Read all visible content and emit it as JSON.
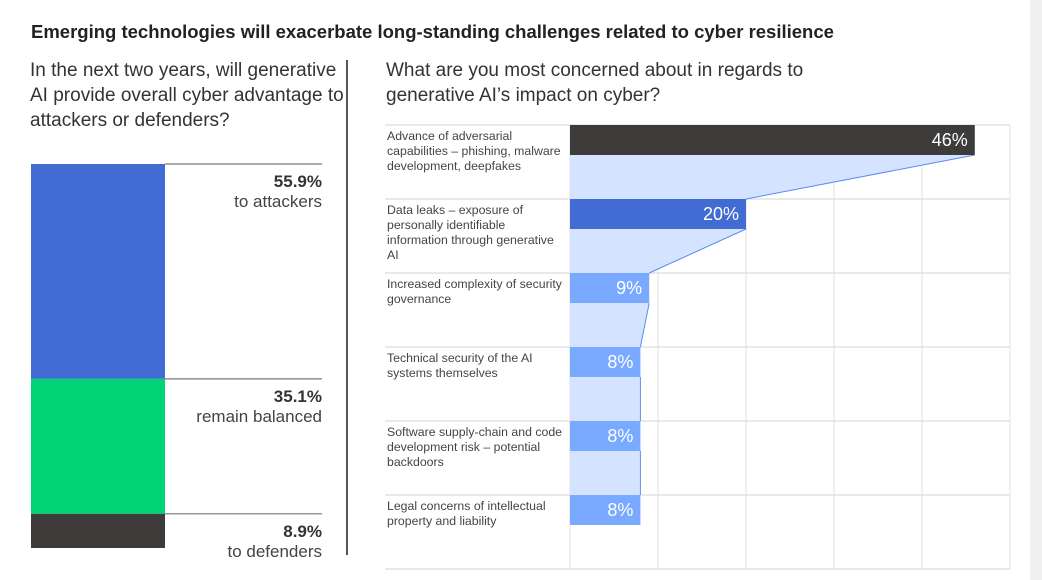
{
  "title": "Emerging technologies will exacerbate long-standing challenges related to cyber resilience",
  "chart_data": [
    {
      "type": "bar",
      "stacked": true,
      "title": "In the next two years, will generative AI provide overall cyber advantage to attackers or defenders?",
      "categories": [
        "to attackers",
        "remain balanced",
        "to defenders"
      ],
      "values": [
        55.9,
        35.1,
        8.9
      ],
      "value_labels": [
        "55.9%",
        "35.1%",
        "8.9%"
      ],
      "colors": [
        "#426cd4",
        "#00d474",
        "#3d3c3b"
      ]
    },
    {
      "type": "bar",
      "orientation": "horizontal",
      "title": "What are you most concerned about in regards to generative AI’s impact on cyber?",
      "categories": [
        "Advance of adversarial capabilities – phishing, malware development, deepfakes",
        "Data leaks – exposure of personally identifiable information through generative AI",
        "Increased complexity of security governance",
        "Technical security of the AI systems themselves",
        "Software supply-chain and code development risk – potential backdoors",
        "Legal concerns of intellectual property and liability"
      ],
      "values": [
        46,
        20,
        9,
        8,
        8,
        8
      ],
      "value_labels": [
        "46%",
        "20%",
        "9%",
        "8%",
        "8%",
        "8%"
      ],
      "colors": [
        "#3d3c3b",
        "#426cd4",
        "#7aaaff",
        "#7aaaff",
        "#7aaaff",
        "#7aaaff"
      ],
      "connector_color": "#d4e3ff",
      "xlim": [
        0,
        50
      ],
      "grid": true
    }
  ]
}
